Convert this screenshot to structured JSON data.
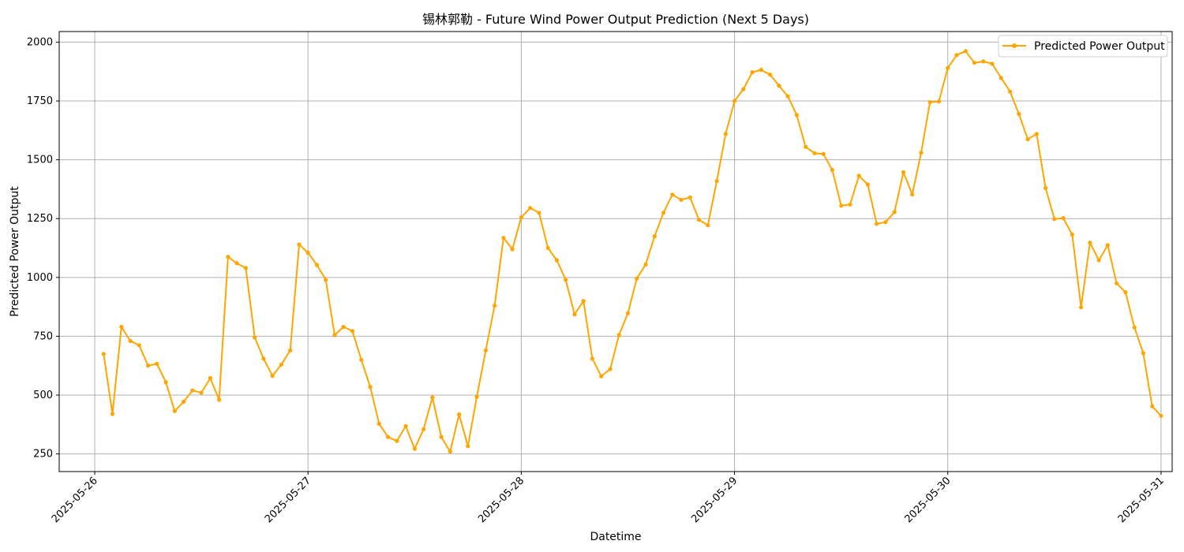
{
  "chart_data": {
    "type": "line",
    "title": "锡林郭勒 - Future Wind Power Output Prediction (Next 5 Days)",
    "xlabel": "Datetime",
    "ylabel": "Predicted Power Output",
    "grid": true,
    "legend_position": "top-right",
    "xlim": [
      "2025-05-25T20:00",
      "2025-05-31T01:15"
    ],
    "ylim": [
      175,
      2045
    ],
    "x_ticks": [
      "2025-05-26",
      "2025-05-27",
      "2025-05-28",
      "2025-05-29",
      "2025-05-30",
      "2025-05-31"
    ],
    "y_ticks": [
      250,
      500,
      750,
      1000,
      1250,
      1500,
      1750,
      2000
    ],
    "colors": {
      "series": "#ffa500",
      "grid": "#b0b0b0"
    },
    "series": [
      {
        "name": "Predicted Power Output",
        "marker": "circle",
        "x_start": "2025-05-26T01:00",
        "x_step_hours": 1,
        "values": [
          675,
          420,
          790,
          730,
          712,
          625,
          633,
          555,
          432,
          472,
          520,
          510,
          572,
          480,
          1088,
          1060,
          1040,
          745,
          655,
          582,
          630,
          690,
          1140,
          1105,
          1053,
          990,
          755,
          790,
          772,
          650,
          535,
          378,
          322,
          305,
          368,
          272,
          355,
          490,
          322,
          260,
          418,
          283,
          493,
          690,
          880,
          1168,
          1120,
          1255,
          1295,
          1275,
          1125,
          1073,
          990,
          843,
          900,
          655,
          580,
          610,
          755,
          848,
          995,
          1055,
          1175,
          1275,
          1352,
          1330,
          1340,
          1245,
          1222,
          1410,
          1610,
          1750,
          1800,
          1872,
          1882,
          1862,
          1815,
          1770,
          1690,
          1555,
          1528,
          1525,
          1457,
          1305,
          1310,
          1432,
          1395,
          1228,
          1235,
          1278,
          1447,
          1353,
          1530,
          1745,
          1748,
          1890,
          1945,
          1962,
          1912,
          1918,
          1908,
          1848,
          1790,
          1695,
          1587,
          1610,
          1380,
          1248,
          1252,
          1182,
          873,
          1148,
          1073,
          1137,
          975,
          937,
          788,
          678,
          452,
          412
        ]
      }
    ]
  }
}
